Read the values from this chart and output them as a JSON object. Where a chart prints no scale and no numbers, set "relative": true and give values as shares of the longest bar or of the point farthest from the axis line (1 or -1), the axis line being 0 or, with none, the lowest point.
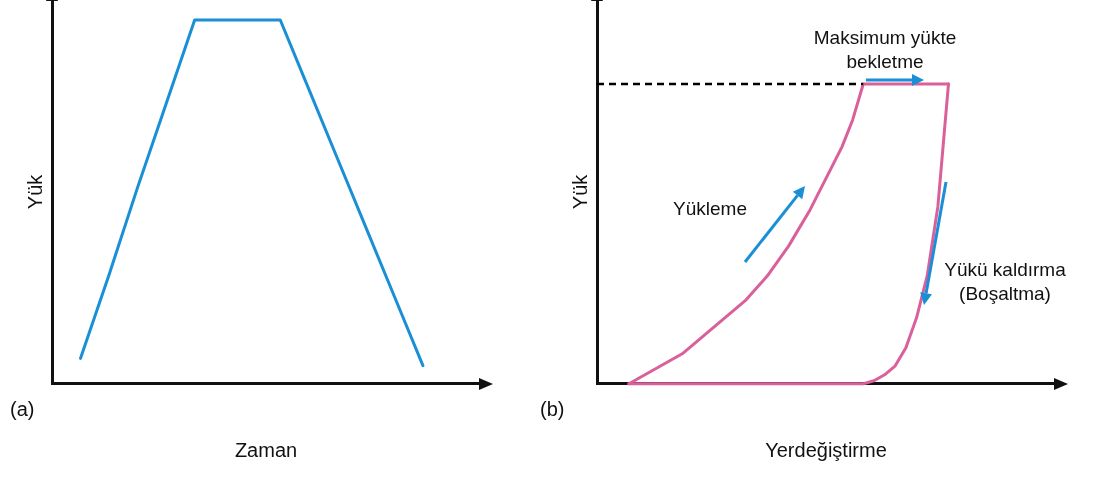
{
  "chart_data": [
    {
      "type": "line",
      "title": "(a)",
      "xlabel": "Zaman",
      "ylabel": "Yük",
      "relative": true,
      "legend": false,
      "categories": [
        null,
        null,
        null,
        null,
        null,
        null,
        null,
        null,
        null,
        null,
        null,
        null,
        null,
        null,
        null,
        null
      ],
      "series": [
        {
          "color": "#1a8fd6",
          "values": [
            null,
            0.07,
            0.3,
            0.54,
            0.77,
            1,
            1,
            1,
            1,
            0.81,
            0.62,
            0.43,
            0.24,
            0.05,
            null,
            null
          ]
        }
      ]
    },
    {
      "type": "line",
      "title": "(b)",
      "xlabel": "Yerdeğiştirme",
      "ylabel": "Yük",
      "relative": true,
      "legend": false,
      "categories": [
        null,
        null,
        null,
        null,
        null,
        null,
        null,
        null,
        null,
        null,
        null,
        null,
        null,
        null,
        null,
        null,
        null,
        null,
        null,
        null,
        null,
        null,
        null,
        null,
        null,
        null,
        null,
        null,
        null,
        null,
        null,
        null,
        null,
        null,
        null,
        null,
        null,
        null,
        null,
        null,
        null,
        null,
        null,
        null
      ],
      "ref_lines": [
        {
          "axis": "y",
          "value": 1,
          "color": "#000000",
          "line_style": "dashed"
        }
      ],
      "annotations": [
        "Maksimum yükte bekletme",
        "Yükleme",
        "Yükü kaldırma (Boşaltma)"
      ],
      "series": [
        {
          "color": "#d9609a",
          "values": [
            null,
            null,
            null,
            0,
            0.02,
            0.04,
            0.06,
            0.08,
            0.1,
            0.13,
            0.16,
            0.19,
            0.22,
            0.25,
            0.28,
            0.32,
            0.36,
            0.41,
            0.46,
            0.52,
            0.58,
            0.65,
            0.72,
            0.79,
            0.88,
            1,
            1,
            1,
            1,
            1,
            1,
            1,
            1,
            1,
            null,
            null,
            null,
            null,
            null,
            null,
            null,
            null,
            null,
            null
          ]
        },
        {
          "color": "#d9609a",
          "values": [
            null,
            null,
            null,
            0,
            0,
            0,
            0,
            0,
            0,
            0,
            0,
            0,
            0,
            0,
            0,
            0,
            0,
            0,
            0,
            0,
            0,
            0,
            0,
            0,
            0,
            0,
            0.01,
            0.03,
            0.06,
            0.12,
            0.22,
            0.36,
            0.59,
            1,
            null,
            null,
            null,
            null,
            null,
            null,
            null,
            null,
            null,
            null
          ]
        }
      ]
    }
  ]
}
